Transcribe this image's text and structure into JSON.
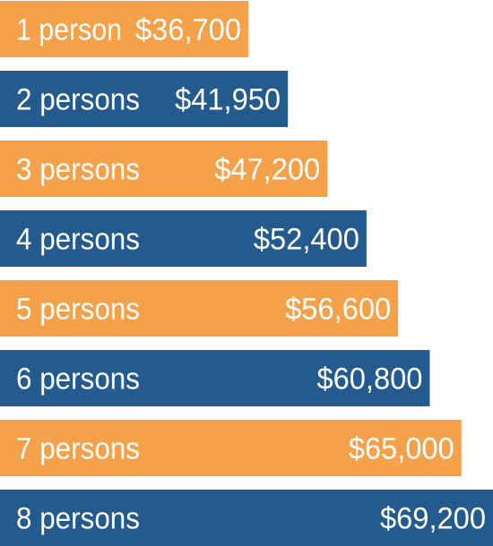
{
  "chart_data": {
    "type": "bar",
    "orientation": "horizontal",
    "categories": [
      "1 person",
      "2 persons",
      "3 persons",
      "4 persons",
      "5 persons",
      "6 persons",
      "7 persons",
      "8 persons"
    ],
    "values": [
      36700,
      41950,
      47200,
      52400,
      56600,
      60800,
      65000,
      69200
    ],
    "value_labels": [
      "$36,700",
      "$41,950",
      "$47,200",
      "$52,400",
      "$56,600",
      "$60,800",
      "$65,000",
      "$69,200"
    ],
    "title": "",
    "xlabel": "",
    "ylabel": "",
    "grid": false,
    "legend": "none"
  },
  "colors": {
    "orange": "#F5A14A",
    "blue": "#245B8E",
    "text": "#FFFFFF"
  }
}
